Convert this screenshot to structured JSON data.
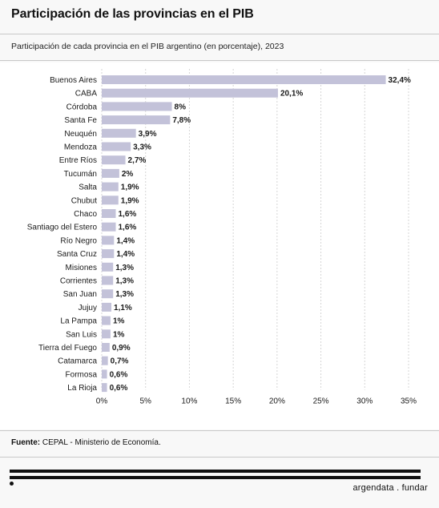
{
  "header": {
    "title": "Participación de las provincias en el PIB",
    "subtitle": "Participación de cada provincia en el PIB argentino (en porcentaje), 2023"
  },
  "footer": {
    "source_label": "Fuente:",
    "source_text": "CEPAL - Ministerio de Economía.",
    "brand": "argendata . fundar"
  },
  "colors": {
    "bar": "#c3c2d9",
    "grid": "#d6d6d6",
    "text": "#1a1a1a"
  },
  "chart_data": {
    "type": "bar",
    "orientation": "horizontal",
    "title": "Participación de las provincias en el PIB",
    "subtitle": "Participación de cada provincia en el PIB argentino (en porcentaje), 2023",
    "xlabel": "",
    "ylabel": "",
    "xlim": [
      0,
      35
    ],
    "xticks": [
      0,
      5,
      10,
      15,
      20,
      25,
      30,
      35
    ],
    "xtick_labels": [
      "0%",
      "5%",
      "10%",
      "15%",
      "20%",
      "25%",
      "30%",
      "35%"
    ],
    "grid": "vertical",
    "categories": [
      "Buenos Aires",
      "CABA",
      "Córdoba",
      "Santa Fe",
      "Neuquén",
      "Mendoza",
      "Entre Ríos",
      "Tucumán",
      "Salta",
      "Chubut",
      "Chaco",
      "Santiago del Estero",
      "Río Negro",
      "Santa Cruz",
      "Misiones",
      "Corrientes",
      "San Juan",
      "Jujuy",
      "La Pampa",
      "San Luis",
      "Tierra del Fuego",
      "Catamarca",
      "Formosa",
      "La Rioja"
    ],
    "values": [
      32.4,
      20.1,
      8,
      7.8,
      3.9,
      3.3,
      2.7,
      2,
      1.9,
      1.9,
      1.6,
      1.6,
      1.4,
      1.4,
      1.3,
      1.3,
      1.3,
      1.1,
      1,
      1,
      0.9,
      0.7,
      0.6,
      0.6
    ],
    "value_labels": [
      "32,4%",
      "20,1%",
      "8%",
      "7,8%",
      "3,9%",
      "3,3%",
      "2,7%",
      "2%",
      "1,9%",
      "1,9%",
      "1,6%",
      "1,6%",
      "1,4%",
      "1,4%",
      "1,3%",
      "1,3%",
      "1,3%",
      "1,1%",
      "1%",
      "1%",
      "0,9%",
      "0,7%",
      "0,6%",
      "0,6%"
    ]
  }
}
